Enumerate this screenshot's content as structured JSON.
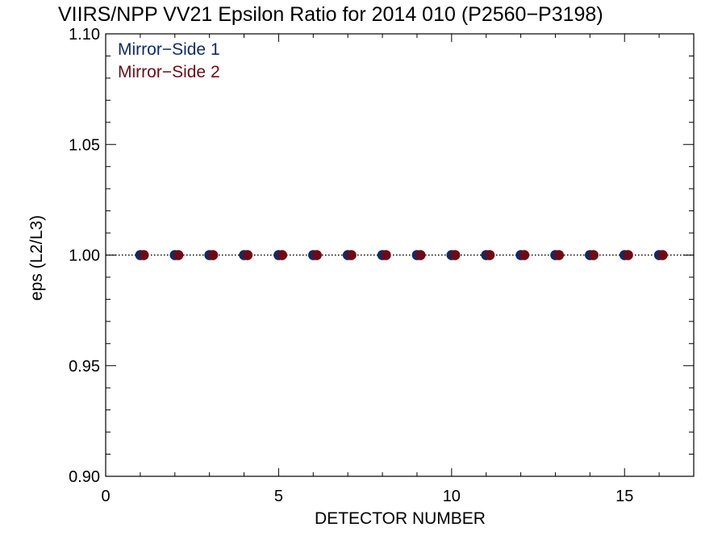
{
  "chart_data": {
    "type": "scatter",
    "title": "VIIRS/NPP VV21 Epsilon Ratio for 2014 010 (P2560−P3198)",
    "xlabel": "DETECTOR NUMBER",
    "ylabel": "eps (L2/L3)",
    "xlim": [
      0,
      17
    ],
    "ylim": [
      0.9,
      1.1
    ],
    "x_ticks": [
      0,
      5,
      10,
      15
    ],
    "x_tick_labels": [
      "0",
      "5",
      "10",
      "15"
    ],
    "y_ticks": [
      0.9,
      0.95,
      1.0,
      1.05,
      1.1
    ],
    "y_tick_labels": [
      "0.90",
      "0.95",
      "1.00",
      "1.05",
      "1.10"
    ],
    "reference_line": {
      "y": 1.0,
      "style": "dotted",
      "color": "#000000"
    },
    "legend": {
      "placement": "top-left"
    },
    "series": [
      {
        "name": "Mirror−Side 1",
        "color": "#0d2b6b",
        "x": [
          1,
          2,
          3,
          4,
          5,
          6,
          7,
          8,
          9,
          10,
          11,
          12,
          13,
          14,
          15,
          16
        ],
        "values": [
          1.0,
          1.0,
          1.0,
          1.0,
          1.0,
          1.0,
          1.0,
          1.0,
          1.0,
          1.0,
          1.0,
          1.0,
          1.0,
          1.0,
          1.0,
          1.0
        ]
      },
      {
        "name": "Mirror−Side 2",
        "color": "#6e0a14",
        "x": [
          1.1,
          2.1,
          3.1,
          4.1,
          5.1,
          6.1,
          7.1,
          8.1,
          9.1,
          10.1,
          11.1,
          12.1,
          13.1,
          14.1,
          15.1,
          16.1
        ],
        "values": [
          1.0,
          1.0,
          1.0,
          1.0,
          1.0,
          1.0,
          1.0,
          1.0,
          1.0,
          1.0,
          1.0,
          1.0,
          1.0,
          1.0,
          1.0,
          1.0
        ]
      }
    ]
  }
}
